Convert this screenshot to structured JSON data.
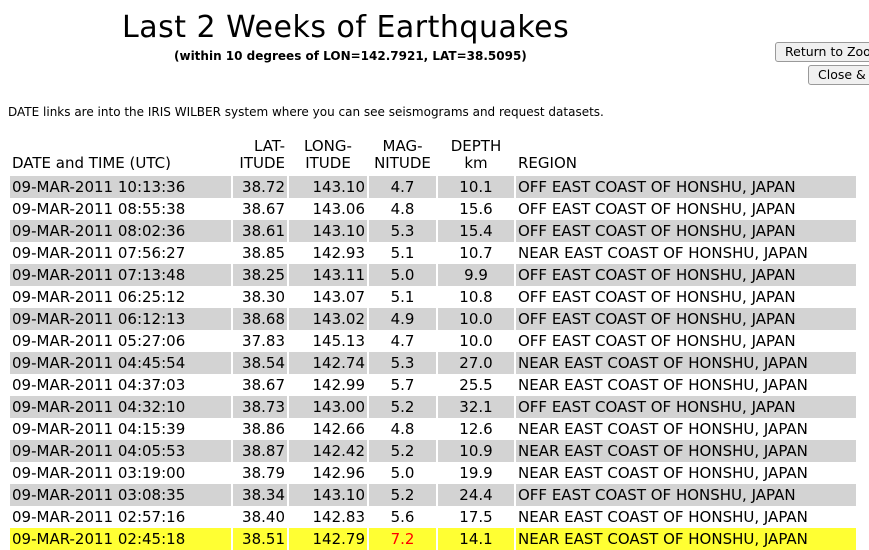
{
  "page": {
    "title": "Last 2 Weeks of Earthquakes",
    "subtitle": "(within 10 degrees of LON=142.7921, LAT=38.5095)",
    "note": "DATE links are into the IRIS WILBER system where you can see seismograms and request datasets."
  },
  "buttons": {
    "return_zoom": "Return to Zoom",
    "close": "Close & Exit"
  },
  "colors": {
    "row_shade": "#d3d3d3",
    "highlight_row": "#ffff33",
    "highlight_magnitude": "#ff0000"
  },
  "table": {
    "headers": {
      "date": "DATE and TIME (UTC)",
      "lat_1": "LAT-",
      "lat_2": "ITUDE",
      "lon_1": "LONG-",
      "lon_2": "ITUDE",
      "mag_1": "MAG-",
      "mag_2": "NITUDE",
      "depth_1": "DEPTH",
      "depth_2": "km",
      "region": "REGION"
    },
    "rows": [
      {
        "date": "09-MAR-2011 10:13:36",
        "lat": "38.72",
        "lon": "143.10",
        "mag": "4.7",
        "depth": "10.1",
        "region": "OFF EAST COAST OF HONSHU, JAPAN"
      },
      {
        "date": "09-MAR-2011 08:55:38",
        "lat": "38.67",
        "lon": "143.06",
        "mag": "4.8",
        "depth": "15.6",
        "region": "OFF EAST COAST OF HONSHU, JAPAN"
      },
      {
        "date": "09-MAR-2011 08:02:36",
        "lat": "38.61",
        "lon": "143.10",
        "mag": "5.3",
        "depth": "15.4",
        "region": "OFF EAST COAST OF HONSHU, JAPAN"
      },
      {
        "date": "09-MAR-2011 07:56:27",
        "lat": "38.85",
        "lon": "142.93",
        "mag": "5.1",
        "depth": "10.7",
        "region": "NEAR EAST COAST OF HONSHU, JAPAN"
      },
      {
        "date": "09-MAR-2011 07:13:48",
        "lat": "38.25",
        "lon": "143.11",
        "mag": "5.0",
        "depth": "9.9",
        "region": "OFF EAST COAST OF HONSHU, JAPAN"
      },
      {
        "date": "09-MAR-2011 06:25:12",
        "lat": "38.30",
        "lon": "143.07",
        "mag": "5.1",
        "depth": "10.8",
        "region": "OFF EAST COAST OF HONSHU, JAPAN"
      },
      {
        "date": "09-MAR-2011 06:12:13",
        "lat": "38.68",
        "lon": "143.02",
        "mag": "4.9",
        "depth": "10.0",
        "region": "OFF EAST COAST OF HONSHU, JAPAN"
      },
      {
        "date": "09-MAR-2011 05:27:06",
        "lat": "37.83",
        "lon": "145.13",
        "mag": "4.7",
        "depth": "10.0",
        "region": "OFF EAST COAST OF HONSHU, JAPAN"
      },
      {
        "date": "09-MAR-2011 04:45:54",
        "lat": "38.54",
        "lon": "142.74",
        "mag": "5.3",
        "depth": "27.0",
        "region": "NEAR EAST COAST OF HONSHU, JAPAN"
      },
      {
        "date": "09-MAR-2011 04:37:03",
        "lat": "38.67",
        "lon": "142.99",
        "mag": "5.7",
        "depth": "25.5",
        "region": "NEAR EAST COAST OF HONSHU, JAPAN"
      },
      {
        "date": "09-MAR-2011 04:32:10",
        "lat": "38.73",
        "lon": "143.00",
        "mag": "5.2",
        "depth": "32.1",
        "region": "OFF EAST COAST OF HONSHU, JAPAN"
      },
      {
        "date": "09-MAR-2011 04:15:39",
        "lat": "38.86",
        "lon": "142.66",
        "mag": "4.8",
        "depth": "12.6",
        "region": "NEAR EAST COAST OF HONSHU, JAPAN"
      },
      {
        "date": "09-MAR-2011 04:05:53",
        "lat": "38.87",
        "lon": "142.42",
        "mag": "5.2",
        "depth": "10.9",
        "region": "NEAR EAST COAST OF HONSHU, JAPAN"
      },
      {
        "date": "09-MAR-2011 03:19:00",
        "lat": "38.79",
        "lon": "142.96",
        "mag": "5.0",
        "depth": "19.9",
        "region": "NEAR EAST COAST OF HONSHU, JAPAN"
      },
      {
        "date": "09-MAR-2011 03:08:35",
        "lat": "38.34",
        "lon": "143.10",
        "mag": "5.2",
        "depth": "24.4",
        "region": "OFF EAST COAST OF HONSHU, JAPAN"
      },
      {
        "date": "09-MAR-2011 02:57:16",
        "lat": "38.40",
        "lon": "142.83",
        "mag": "5.6",
        "depth": "17.5",
        "region": "NEAR EAST COAST OF HONSHU, JAPAN"
      },
      {
        "date": "09-MAR-2011 02:45:18",
        "lat": "38.51",
        "lon": "142.79",
        "mag": "7.2",
        "depth": "14.1",
        "region": "NEAR EAST COAST OF HONSHU, JAPAN",
        "highlight": true
      }
    ]
  }
}
